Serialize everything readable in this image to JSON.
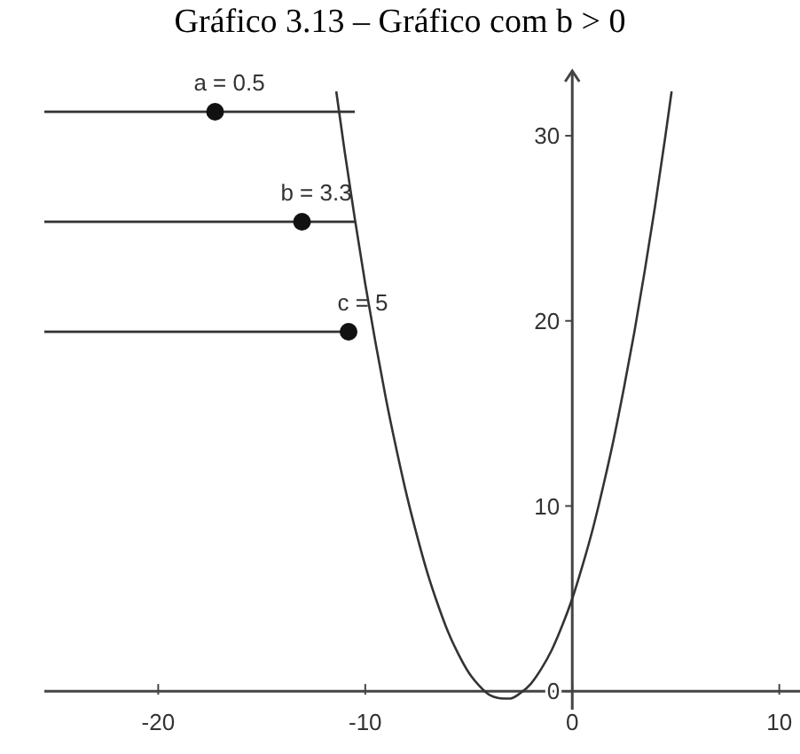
{
  "chart_data": {
    "type": "line",
    "title": "Gráfico 3.13 – Gráfico com b > 0",
    "x": [
      -11.4,
      -11,
      -10.5,
      -10,
      -9.5,
      -9,
      -8.5,
      -8,
      -7.5,
      -7,
      -6.5,
      -6,
      -5.5,
      -5,
      -4.5,
      -4,
      -3.3,
      -3,
      -2.5,
      -2,
      -1.5,
      -1,
      -0.5,
      0,
      0.5,
      1,
      1.5,
      2,
      2.5,
      3,
      3.5,
      4,
      4.5,
      4.8
    ],
    "series": [
      {
        "color": "#333333",
        "values": [
          32.4,
          29.2,
          25.5,
          22,
          18.8,
          15.8,
          13.1,
          10.6,
          8.4,
          6.4,
          4.7,
          3.2,
          2,
          1,
          0.3,
          -0.2,
          -0.4,
          -0.4,
          -0.1,
          0.4,
          1.2,
          2.2,
          3.5,
          5,
          6.8,
          8.8,
          11.1,
          13.6,
          16.4,
          19.4,
          22.7,
          26.2,
          30,
          32.4
        ]
      }
    ],
    "xlim": [
      -25.5,
      11
    ],
    "ylim": [
      -1,
      33.5
    ],
    "xticks": [
      -20,
      -10,
      0,
      10
    ],
    "yticks": [
      0,
      10,
      20,
      30
    ],
    "grid": false,
    "marker": "none",
    "line_style": "solid",
    "annotations": [
      "a = 0.5",
      "b = 3.3",
      "c = 5"
    ]
  }
}
